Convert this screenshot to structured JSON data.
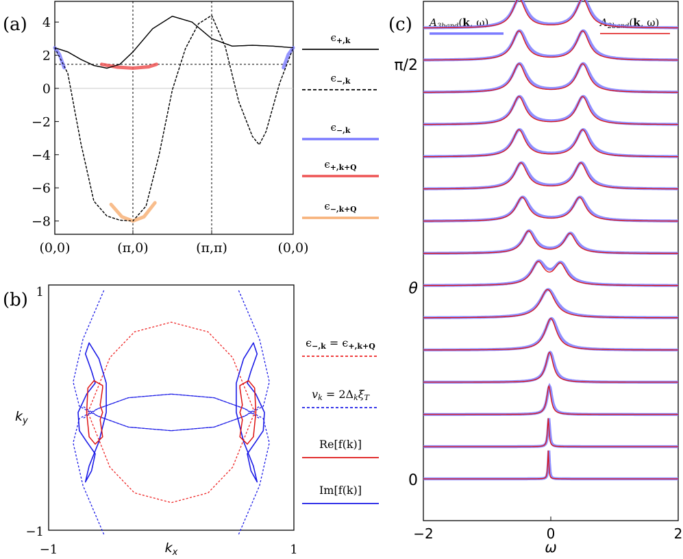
{
  "chart_data": [
    {
      "id": "a",
      "panel_label": "(a)",
      "type": "line",
      "x_ticks": [
        "(0,0)",
        "(π,0)",
        "(π,π)",
        "(0,0)"
      ],
      "y_ticks": [
        4,
        2,
        0,
        -2,
        -4,
        -6,
        -8
      ],
      "ylim": [
        -8.4,
        5
      ],
      "reference_lines": {
        "horizontal": [
          1.45,
          0
        ],
        "vertical": [
          "(π,0)",
          "(π,π)"
        ]
      },
      "legend": [
        {
          "label": "ϵ+,k",
          "color": "#000000",
          "style": "solid"
        },
        {
          "label": "ϵ−,k",
          "color": "#000000",
          "style": "dashed"
        },
        {
          "label": "ϵ−,k",
          "color": "#7b7bff",
          "style": "solid-thick"
        },
        {
          "label": "ϵ+,k+Q",
          "color": "#ee5555",
          "style": "solid-thick"
        },
        {
          "label": "ϵ−,k+Q",
          "color": "#f7b178",
          "style": "solid-thick"
        }
      ],
      "series": [
        {
          "name": "ϵ+,k",
          "color": "#000000",
          "x": [
            0,
            0.167,
            0.333,
            0.5,
            0.667,
            0.833,
            1,
            1.25,
            1.5,
            1.75,
            2,
            2.25,
            2.5,
            2.75,
            3
          ],
          "values": [
            2.45,
            2.2,
            1.75,
            1.38,
            1.22,
            1.45,
            2.2,
            3.6,
            4.35,
            4.0,
            3.0,
            2.55,
            2.6,
            2.55,
            2.45
          ]
        },
        {
          "name": "ϵ−,k",
          "color": "#000000",
          "x": [
            0,
            0.167,
            0.333,
            0.5,
            0.667,
            0.833,
            1,
            1.167,
            1.333,
            1.5,
            1.667,
            1.833,
            2,
            2.167,
            2.333,
            2.5,
            2.583,
            2.667,
            2.833,
            3
          ],
          "values": [
            2.45,
            0.9,
            -3.3,
            -6.8,
            -7.7,
            -7.95,
            -8.0,
            -7.1,
            -4.0,
            -0.1,
            2.4,
            3.9,
            4.4,
            2.5,
            -0.8,
            -2.9,
            -3.4,
            -2.6,
            0.3,
            2.45
          ]
        },
        {
          "name": "ϵ+,k+Q",
          "color": "#ee5555",
          "x": [
            0.6,
            0.8,
            1,
            1.2,
            1.3
          ],
          "values": [
            1.45,
            1.28,
            1.22,
            1.3,
            1.45
          ]
        },
        {
          "name": "ϵ−,k+Q",
          "color": "#f7b178",
          "x": [
            0.72,
            0.86,
            1,
            1.14,
            1.28
          ],
          "values": [
            -7.0,
            -7.75,
            -8.0,
            -7.75,
            -6.9
          ]
        },
        {
          "name": "ϵ−,k",
          "color": "#7b7bff",
          "x": [
            0,
            0.06,
            0.12,
            2.88,
            2.94,
            3
          ],
          "values": [
            2.45,
            2.05,
            1.25,
            1.25,
            2.05,
            2.45
          ]
        }
      ]
    },
    {
      "id": "b",
      "panel_label": "(b)",
      "type": "line",
      "xlabel": "kx",
      "ylabel": "ky",
      "xlim": [
        -1,
        1
      ],
      "ylim": [
        -1,
        1
      ],
      "x_ticks": [
        "−1",
        "1"
      ],
      "y_ticks": [
        "1",
        "−1"
      ],
      "legend": [
        {
          "label": "ϵ−,k = ϵ+,k+Q",
          "color": "#ee2222",
          "style": "dashed"
        },
        {
          "label": "vk = 2ΔkξT",
          "color": "#1a1ae6",
          "style": "dashed"
        },
        {
          "label": "Re[f(k)]",
          "color": "#dd1111",
          "style": "solid"
        },
        {
          "label": "Im[f(k)]",
          "color": "#1a1ae6",
          "style": "solid"
        }
      ],
      "curves": {
        "red_dashed": {
          "x": [
            -0.68,
            -0.5,
            -0.3,
            0,
            0.3,
            0.5,
            0.68,
            0.5,
            0.3,
            0,
            -0.3,
            -0.5,
            -0.68
          ],
          "y": [
            0,
            0.45,
            0.66,
            0.74,
            0.66,
            0.45,
            0,
            -0.45,
            -0.66,
            -0.74,
            -0.66,
            -0.45,
            0
          ]
        },
        "blue_dashed_right": {
          "x": [
            0.55,
            0.72,
            0.8,
            0.75,
            0.6,
            0.35,
            0,
            -0.35,
            -0.6,
            -0.72
          ],
          "y": [
            1.0,
            0.6,
            0.25,
            0.05,
            -0.03,
            -0.12,
            -0.15,
            -0.12,
            -0.03,
            0.05
          ]
        },
        "re_f_right": {
          "x": [
            0.56,
            0.63,
            0.68,
            0.69,
            0.67,
            0.62,
            0.56,
            0.58,
            0.56,
            0.58,
            0.56
          ],
          "y": [
            0.22,
            0.26,
            0.2,
            0,
            -0.2,
            -0.26,
            -0.2,
            -0.06,
            0,
            0.06,
            0.2
          ]
        },
        "im_f_right": {
          "x": [
            0.53,
            0.59,
            0.67,
            0.7,
            0.65,
            0.62,
            0.69,
            0.76,
            0.75,
            0.69,
            0.62,
            0.65,
            0.7,
            0.67,
            0.59,
            0.53
          ],
          "y": [
            0.24,
            0.44,
            0.57,
            0.48,
            0.34,
            0.24,
            0.15,
            0,
            -0.15,
            -0.24,
            -0.34,
            -0.48,
            -0.57,
            -0.44,
            -0.24,
            0
          ]
        }
      }
    },
    {
      "id": "c",
      "panel_label": "(c)",
      "type": "line",
      "xlabel": "ω",
      "ylabel": "θ",
      "xlim": [
        -2,
        2
      ],
      "x_ticks": [
        -2,
        0,
        2
      ],
      "y_tick_labels": [
        "π/2",
        "θ",
        "0"
      ],
      "legend": [
        {
          "label": "A3band(k,ω)",
          "color": "#7b7bff",
          "style": "solid-thick"
        },
        {
          "label": "A2band(k,ω)",
          "color": "#dd1111",
          "style": "solid"
        }
      ],
      "series_description": "spectral function traces stacked from θ = 0 (bottom) to θ = π/2 (top)",
      "traces": [
        {
          "theta_index": 0,
          "peaks": [
            [
              -0.04,
              0.9,
              0.01
            ]
          ]
        },
        {
          "theta_index": 1,
          "peaks": [
            [
              -0.04,
              0.9,
              0.015
            ]
          ]
        },
        {
          "theta_index": 2,
          "peaks": [
            [
              -0.03,
              0.9,
              0.04
            ]
          ]
        },
        {
          "theta_index": 3,
          "peaks": [
            [
              -0.02,
              0.95,
              0.07
            ]
          ]
        },
        {
          "theta_index": 4,
          "peaks": [
            [
              0.0,
              1.0,
              0.11
            ]
          ]
        },
        {
          "theta_index": 5,
          "peaks": [
            [
              -0.05,
              0.9,
              0.14
            ]
          ]
        },
        {
          "theta_index": 6,
          "peaks": [
            [
              -0.2,
              0.7,
              0.12
            ],
            [
              0.15,
              0.65,
              0.12
            ]
          ]
        },
        {
          "theta_index": 7,
          "peaks": [
            [
              -0.35,
              0.7,
              0.11
            ],
            [
              0.3,
              0.62,
              0.11
            ]
          ]
        },
        {
          "theta_index": 8,
          "peaks": [
            [
              -0.45,
              0.75,
              0.12
            ],
            [
              0.45,
              0.75,
              0.12
            ]
          ]
        },
        {
          "theta_index": 9,
          "peaks": [
            [
              -0.47,
              0.82,
              0.12
            ],
            [
              0.47,
              0.82,
              0.12
            ]
          ]
        },
        {
          "theta_index": 10,
          "peaks": [
            [
              -0.5,
              0.85,
              0.12
            ],
            [
              0.5,
              0.85,
              0.12
            ]
          ]
        },
        {
          "theta_index": 11,
          "peaks": [
            [
              -0.5,
              0.88,
              0.12
            ],
            [
              0.5,
              0.88,
              0.12
            ]
          ]
        },
        {
          "theta_index": 12,
          "peaks": [
            [
              -0.5,
              0.9,
              0.12
            ],
            [
              0.5,
              0.9,
              0.12
            ]
          ]
        },
        {
          "theta_index": 13,
          "peaks": [
            [
              -0.5,
              0.92,
              0.12
            ],
            [
              0.5,
              0.92,
              0.12
            ]
          ]
        },
        {
          "theta_index": 14,
          "peaks": [
            [
              -0.5,
              0.93,
              0.12
            ],
            [
              0.5,
              0.93,
              0.12
            ]
          ]
        }
      ]
    }
  ]
}
